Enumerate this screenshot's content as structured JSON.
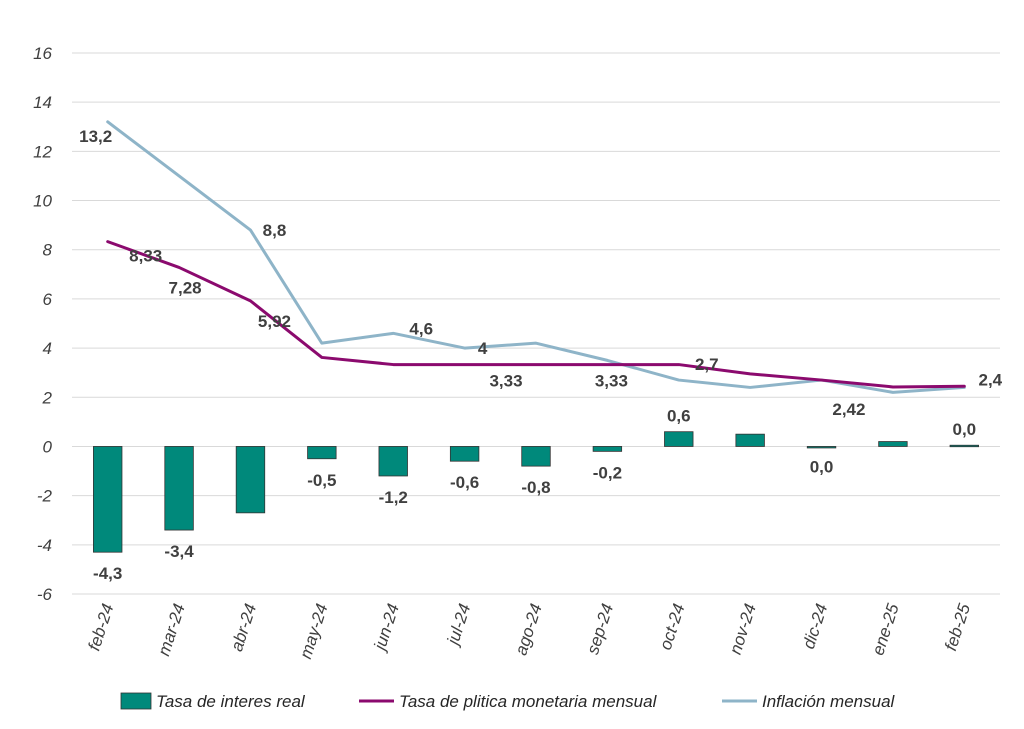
{
  "chart_data": {
    "type": "bar+line",
    "categories": [
      "feb-24",
      "mar-24",
      "abr-24",
      "may-24",
      "jun-24",
      "jul-24",
      "ago-24",
      "sep-24",
      "oct-24",
      "nov-24",
      "dic-24",
      "ene-25",
      "feb-25"
    ],
    "ylim": [
      -6,
      16
    ],
    "yticks": [
      -6,
      -4,
      -2,
      0,
      2,
      4,
      6,
      8,
      10,
      12,
      14,
      16
    ],
    "ytick_labels": [
      "-6",
      "-4",
      "-2",
      "0",
      "2",
      "4",
      "6",
      "8",
      "10",
      "12",
      "14",
      "16"
    ],
    "grid": true,
    "legend_position": "bottom",
    "series": [
      {
        "name": "Tasa de interes real",
        "kind": "bar",
        "color": "#00897b",
        "values": [
          -4.3,
          -3.4,
          -2.7,
          -0.5,
          -1.2,
          -0.6,
          -0.8,
          -0.2,
          0.6,
          0.5,
          -0.05,
          0.2,
          0.05
        ],
        "labels": [
          "-4,3",
          "-3,4",
          "",
          "-0,5",
          "-1,2",
          "-0,6",
          "-0,8",
          "-0,2",
          "0,6",
          "",
          "0,0",
          "",
          "0,0"
        ]
      },
      {
        "name": "Tasa de plitica monetaria mensual",
        "kind": "line",
        "color": "#8b0a6e",
        "values": [
          8.33,
          7.28,
          5.92,
          3.62,
          3.33,
          3.33,
          3.33,
          3.33,
          3.33,
          2.95,
          2.7,
          2.42,
          2.45
        ],
        "labels": [
          "8,33",
          "7,28",
          "5,92",
          "",
          "",
          "",
          "3,33",
          "3,33",
          "",
          "",
          "",
          "2,42",
          ""
        ]
      },
      {
        "name": "Inflación mensual",
        "kind": "line",
        "color": "#8eb4c8",
        "values": [
          13.2,
          11.0,
          8.8,
          4.2,
          4.6,
          4.0,
          4.2,
          3.5,
          2.7,
          2.4,
          2.7,
          2.2,
          2.4
        ],
        "labels": [
          "13,2",
          "",
          "8,8",
          "",
          "4,6",
          "4",
          "",
          "",
          "2,7",
          "",
          "",
          "",
          "2,4"
        ]
      }
    ]
  }
}
